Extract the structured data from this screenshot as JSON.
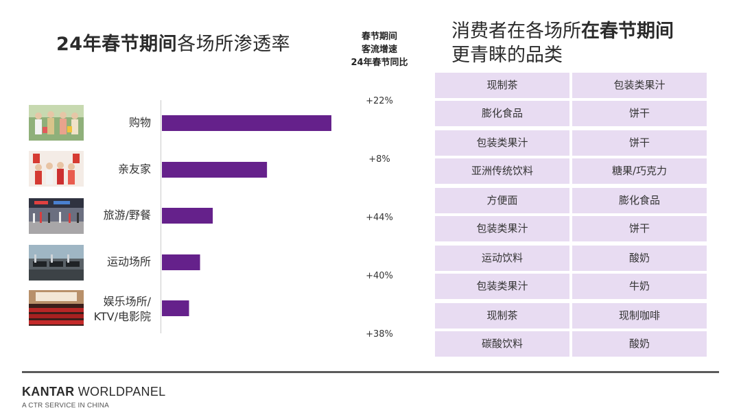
{
  "left_title": {
    "bold": "24年春节期间",
    "normal": "各场所渗透率",
    "prefix": "24"
  },
  "growth_header": {
    "line1": "春节期间",
    "line2": "客流增速",
    "line3": "24年春节同比"
  },
  "right_title": {
    "line1_normal": "消费者在各场所",
    "line1_bold": "在春节期间",
    "line2": "更青睐的品类"
  },
  "chart_data": {
    "type": "bar",
    "orientation": "horizontal",
    "title": "24年春节期间各场所渗透率",
    "categories": [
      "购物",
      "亲友家",
      "旅游/野餐",
      "运动场所",
      "娱乐场所/KTV/电影院"
    ],
    "category_lines": [
      [
        "购物"
      ],
      [
        "亲友家"
      ],
      [
        "旅游/野餐"
      ],
      [
        "运动场所"
      ],
      [
        "娱乐场所/",
        "KTV/电影院"
      ]
    ],
    "values": [
      100,
      62,
      30,
      22.5,
      16
    ],
    "value_note": "relative bar lengths; axis not labeled",
    "xlim": [
      0,
      100
    ],
    "bar_color": "#65218b",
    "growth_labels": [
      "+22%",
      "+8%",
      "+44%",
      "+40%",
      "+38%"
    ]
  },
  "preferred_categories": [
    [
      [
        "现制茶",
        "包装类果汁"
      ],
      [
        "膨化食品",
        "饼干"
      ]
    ],
    [
      [
        "包装类果汁",
        "饼干"
      ],
      [
        "亚洲传统饮料",
        "糖果/巧克力"
      ]
    ],
    [
      [
        "方便面",
        "膨化食品"
      ],
      [
        "包装类果汁",
        "饼干"
      ]
    ],
    [
      [
        "运动饮料",
        "酸奶"
      ],
      [
        "包装类果汁",
        "牛奶"
      ]
    ],
    [
      [
        "现制茶",
        "现制咖啡"
      ],
      [
        "碳酸饮料",
        "酸奶"
      ]
    ]
  ],
  "footer": {
    "brand_bold": "KANTAR",
    "brand_normal": " WORLDPANEL",
    "sub": "A CTR SERVICE IN CHINA"
  },
  "colors": {
    "bar": "#65218b",
    "cell_bg": "#e8dcf2",
    "footer_line": "#5a5a5a"
  },
  "images": [
    "shopping-photo",
    "family-visit-photo",
    "station-travel-photo",
    "gym-photo",
    "cinema-photo"
  ]
}
